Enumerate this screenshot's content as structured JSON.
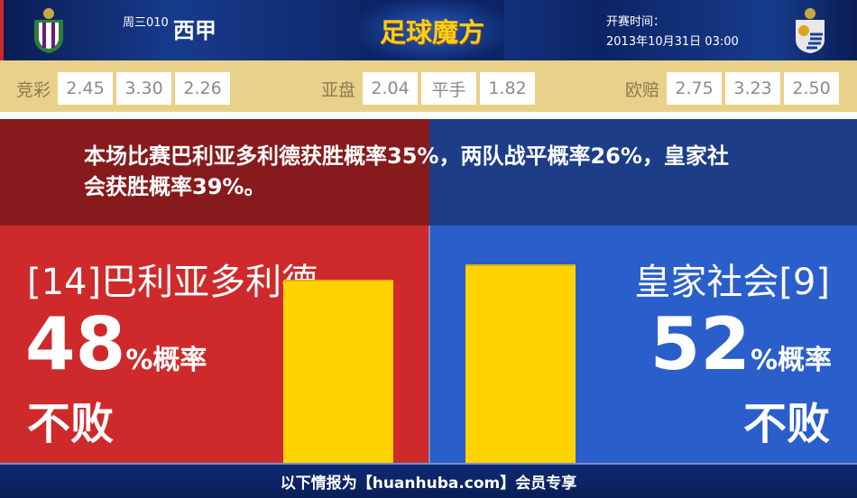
{
  "header": {
    "league_code": "周三010",
    "league_name": "西甲",
    "logo_text": "足球魔方",
    "kickoff_label": "开赛时间：",
    "kickoff_time": "2013年10月31日 03:00"
  },
  "odds": {
    "jingcai": {
      "label": "竞彩",
      "values": [
        "2.45",
        "3.30",
        "2.26"
      ]
    },
    "yapan": {
      "label": "亚盘",
      "values": [
        "2.04",
        "平手",
        "1.82"
      ]
    },
    "oupei": {
      "label": "欧赔",
      "values": [
        "2.75",
        "3.23",
        "2.50"
      ]
    }
  },
  "summary": "本场比赛巴利亚多利德获胜概率35%，两队战平概率26%，皇家社会获胜概率39%。",
  "chart_data": {
    "type": "bar",
    "categories": [
      "巴利亚多利德",
      "皇家社会"
    ],
    "values": [
      48,
      52
    ],
    "unit": "%"
  },
  "home": {
    "team": "[14]巴利亚多利德",
    "percent": "48",
    "pct_suffix": "%概率",
    "label": "不败",
    "color": "#cf2a2b"
  },
  "away": {
    "team": "皇家社会[9]",
    "percent": "52",
    "pct_suffix": "%概率",
    "label": "不败",
    "color": "#2a5ecb"
  },
  "bar_color": "#ffd200",
  "footer": "以下情报为【huanhuba.com】会员专享"
}
